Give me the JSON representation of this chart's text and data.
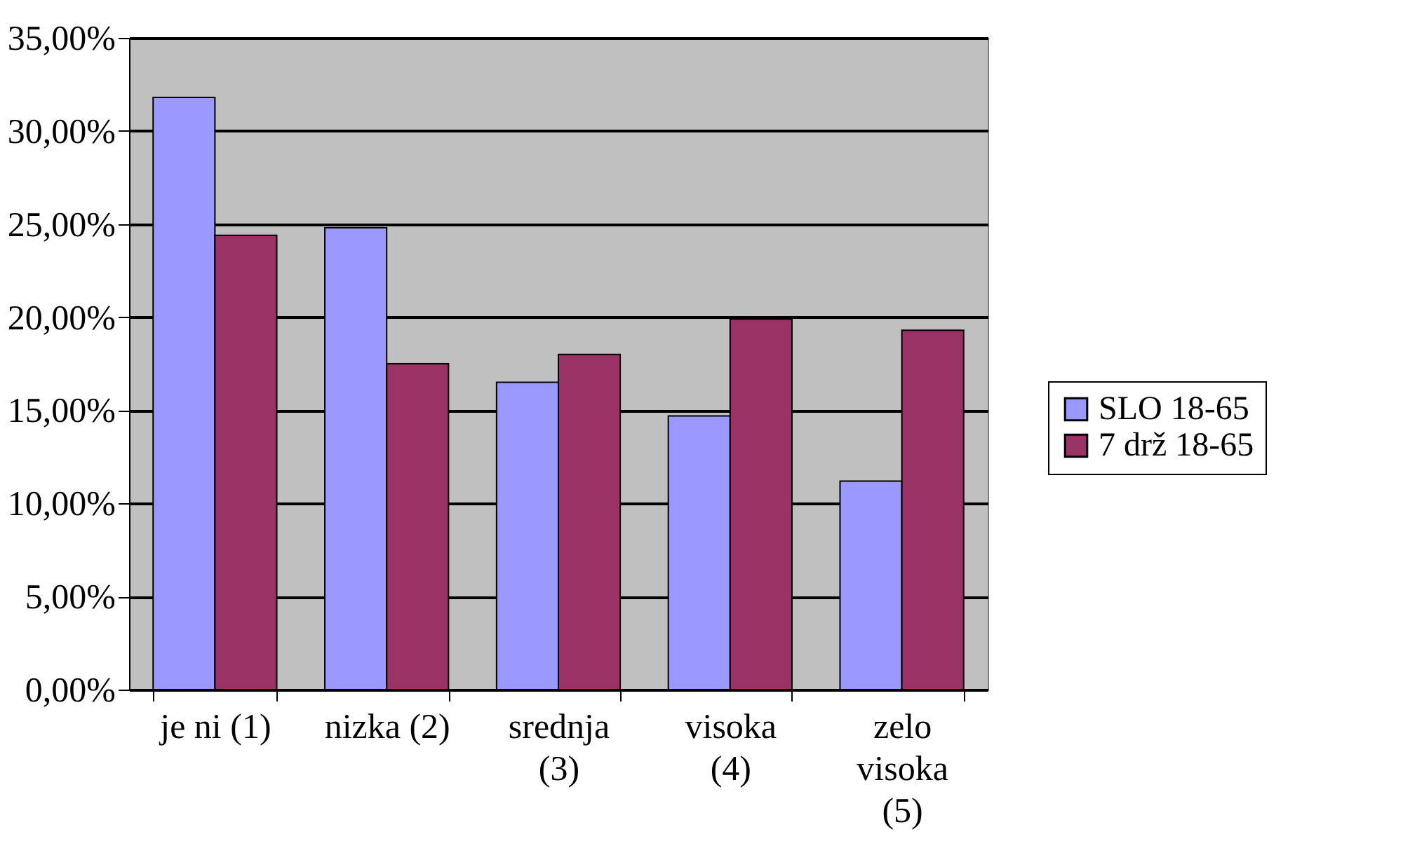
{
  "chart_data": {
    "type": "bar",
    "categories": [
      "je ni  (1)",
      "nizka  (2)",
      "srednja\n(3)",
      "visoka\n(4)",
      "zelo\nvisoka\n(5)"
    ],
    "series": [
      {
        "name": "SLO 18-65",
        "color": "#9999ff",
        "values": [
          31.8,
          24.8,
          16.5,
          14.7,
          11.2
        ]
      },
      {
        "name": "7 drž 18-65",
        "color": "#993366",
        "values": [
          24.4,
          17.5,
          18.0,
          19.9,
          19.3
        ]
      }
    ],
    "ylim": [
      0,
      35
    ],
    "yticks": [
      {
        "value": 0,
        "label": "0,00%"
      },
      {
        "value": 5,
        "label": "5,00%"
      },
      {
        "value": 10,
        "label": "10,00%"
      },
      {
        "value": 15,
        "label": "15,00%"
      },
      {
        "value": 20,
        "label": "20,00%"
      },
      {
        "value": 25,
        "label": "25,00%"
      },
      {
        "value": 30,
        "label": "30,00%"
      },
      {
        "value": 35,
        "label": "35,00%"
      }
    ],
    "grid": "y",
    "legend": "right"
  }
}
